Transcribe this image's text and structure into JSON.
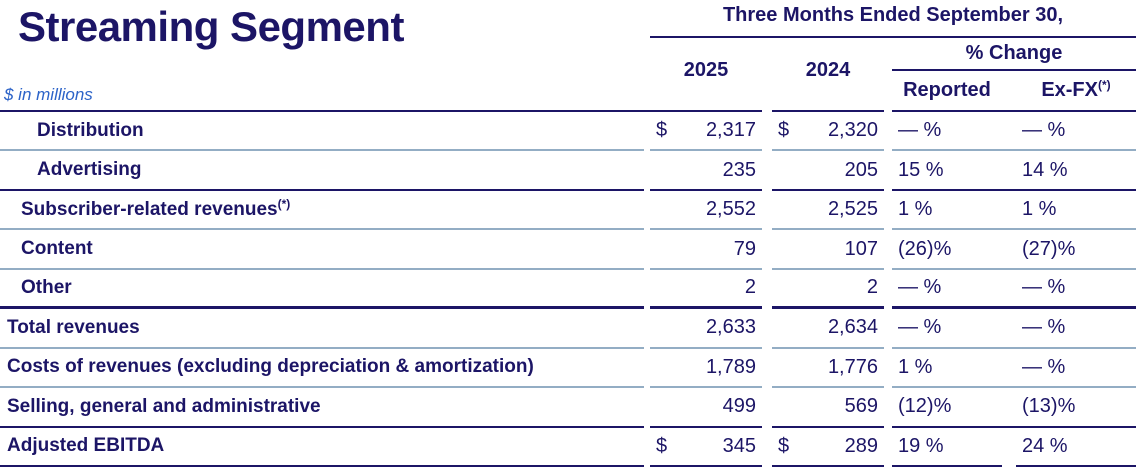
{
  "title": "Streaming Segment",
  "subtitle": "$ in millions",
  "header": {
    "period": "Three Months Ended September 30,",
    "col_2025": "2025",
    "col_2024": "2024",
    "pct_change": "% Change",
    "reported": "Reported",
    "exfx": "Ex-FX",
    "exfx_sup": "(*)"
  },
  "colors": {
    "navy_text_and_rules": "#1c1566",
    "subtitle_blue": "#2c63c8",
    "thin_rule_blue": "#93adc4"
  },
  "rows": [
    {
      "label": "Distribution",
      "sup": "",
      "cur2025": "$",
      "v2025": "2,317",
      "cur2024": "$",
      "v2024": "2,320",
      "reported": "— %",
      "exfx": "— %"
    },
    {
      "label": "Advertising",
      "sup": "",
      "cur2025": "",
      "v2025": "235",
      "cur2024": "",
      "v2024": "205",
      "reported": "15 %",
      "exfx": "14 %"
    },
    {
      "label": "Subscriber-related revenues",
      "sup": "(*)",
      "cur2025": "",
      "v2025": "2,552",
      "cur2024": "",
      "v2024": "2,525",
      "reported": "1 %",
      "exfx": "1 %"
    },
    {
      "label": "Content",
      "sup": "",
      "cur2025": "",
      "v2025": "79",
      "cur2024": "",
      "v2024": "107",
      "reported": "(26)%",
      "exfx": "(27)%"
    },
    {
      "label": "Other",
      "sup": "",
      "cur2025": "",
      "v2025": "2",
      "cur2024": "",
      "v2024": "2",
      "reported": "— %",
      "exfx": "— %"
    },
    {
      "label": "Total revenues",
      "sup": "",
      "cur2025": "",
      "v2025": "2,633",
      "cur2024": "",
      "v2024": "2,634",
      "reported": "— %",
      "exfx": "— %"
    },
    {
      "label": "Costs of revenues (excluding depreciation & amortization)",
      "sup": "",
      "cur2025": "",
      "v2025": "1,789",
      "cur2024": "",
      "v2024": "1,776",
      "reported": "1 %",
      "exfx": "— %"
    },
    {
      "label": "Selling, general and administrative",
      "sup": "",
      "cur2025": "",
      "v2025": "499",
      "cur2024": "",
      "v2024": "569",
      "reported": "(12)%",
      "exfx": "(13)%"
    },
    {
      "label": "Adjusted EBITDA",
      "sup": "",
      "cur2025": "$",
      "v2025": "345",
      "cur2024": "$",
      "v2024": "289",
      "reported": "19 %",
      "exfx": "24 %"
    }
  ]
}
